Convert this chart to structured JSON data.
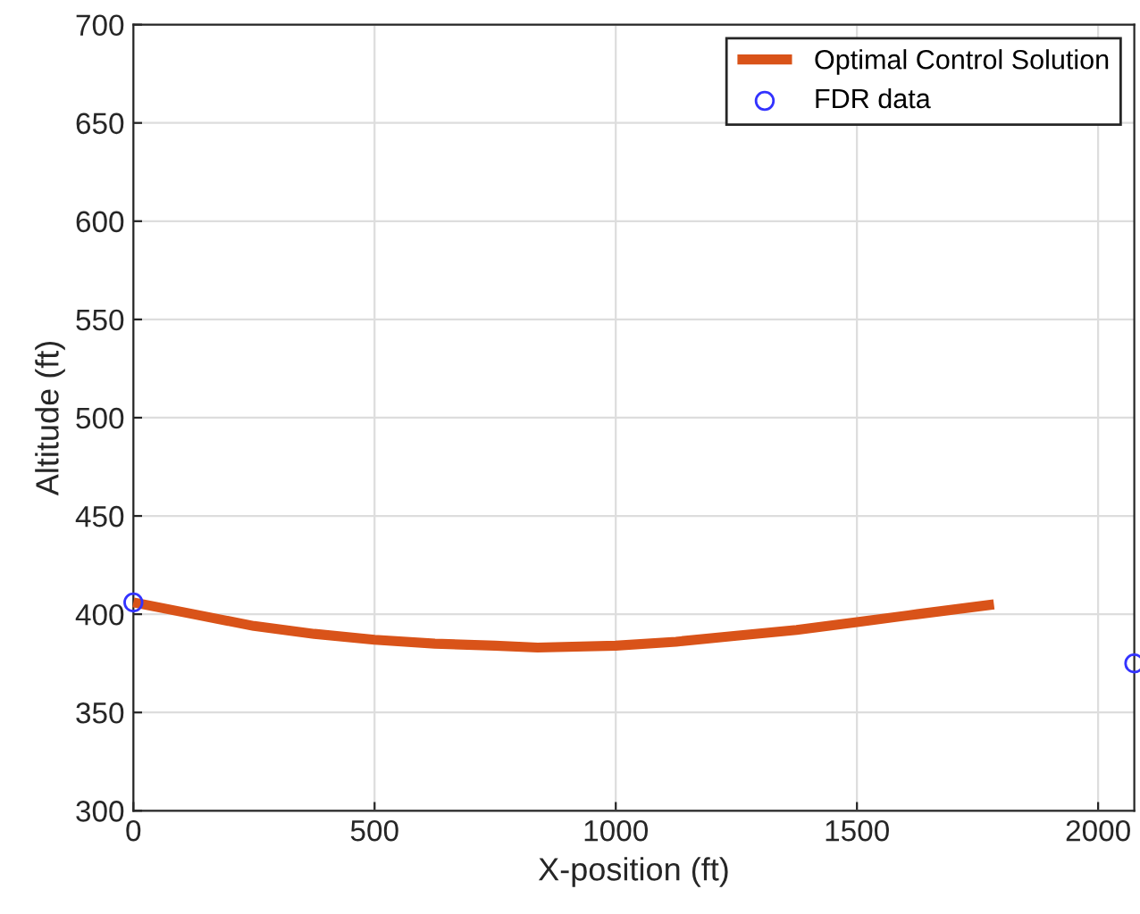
{
  "chart_data": {
    "type": "line",
    "xlabel": "X-position (ft)",
    "ylabel": "Altitude (ft)",
    "xlim": [
      0,
      2075
    ],
    "xticks": [
      0,
      500,
      1000,
      1500,
      2000
    ],
    "ylim": [
      300,
      700
    ],
    "yticks": [
      300,
      350,
      400,
      450,
      500,
      550,
      600,
      650,
      700
    ],
    "grid": true,
    "legend": "top right",
    "series": [
      {
        "name": "Optimal Control Solution",
        "color": "#d95319",
        "x": [
          0,
          125,
          250,
          375,
          500,
          625,
          750,
          838,
          1000,
          1125,
          1250,
          1375,
          1500,
          1625,
          1784
        ],
        "values": [
          406,
          400,
          394,
          390,
          387,
          385,
          384,
          383,
          384,
          386,
          389,
          392,
          396,
          400,
          405
        ]
      },
      {
        "name": "FDR data",
        "type": "scatter",
        "marker": "circle",
        "color": "#3333ff",
        "x": [
          0,
          2075
        ],
        "values": [
          406,
          375
        ]
      }
    ]
  }
}
